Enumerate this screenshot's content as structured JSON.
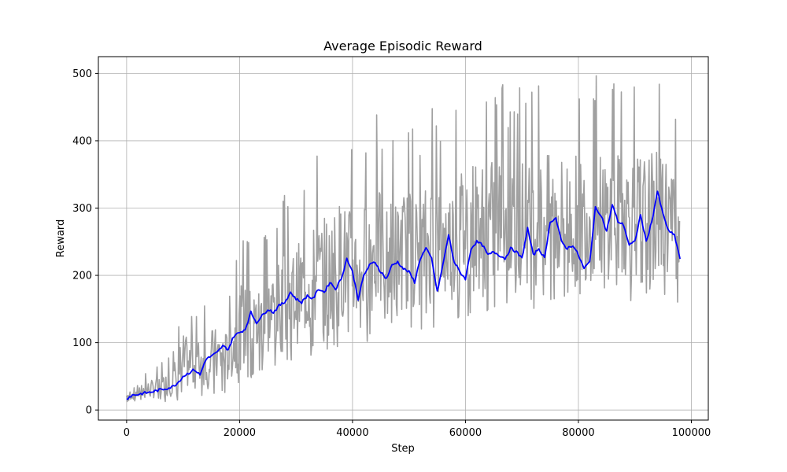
{
  "chart_data": {
    "type": "line",
    "title": "Average Episodic Reward",
    "xlabel": "Step",
    "ylabel": "Reward",
    "xlim": [
      -5000,
      103000
    ],
    "ylim": [
      -15,
      525
    ],
    "xticks": [
      0,
      20000,
      40000,
      60000,
      80000,
      100000
    ],
    "yticks": [
      0,
      100,
      200,
      300,
      400,
      500
    ],
    "grid": true,
    "colors": {
      "raw": "#a0a0a0",
      "smoothed": "#0000ff"
    },
    "series": [
      {
        "key": "raw",
        "x": [
          0,
          2000,
          4000,
          6000,
          8000,
          10000,
          12000,
          14000,
          16000,
          18000,
          20000,
          22000,
          24000,
          26000,
          28000,
          30000,
          32000,
          34000,
          36000,
          38000,
          40000,
          42000,
          44000,
          46000,
          48000,
          50000,
          52000,
          54000,
          56000,
          58000,
          60000,
          62000,
          64000,
          66000,
          68000,
          70000,
          72000,
          74000,
          76000,
          78000,
          80000,
          82000,
          84000,
          86000,
          88000,
          90000,
          92000,
          94000,
          96000,
          98000
        ],
        "y_low": [
          12,
          12,
          12,
          12,
          13,
          15,
          18,
          20,
          22,
          25,
          35,
          45,
          50,
          55,
          60,
          70,
          75,
          80,
          85,
          90,
          95,
          100,
          105,
          110,
          110,
          115,
          120,
          120,
          125,
          130,
          135,
          140,
          140,
          145,
          150,
          150,
          150,
          155,
          150,
          155,
          150,
          155,
          155,
          160,
          160,
          160,
          160,
          165,
          160,
          160
        ],
        "y_high": [
          35,
          50,
          60,
          70,
          85,
          165,
          140,
          175,
          175,
          165,
          265,
          255,
          265,
          300,
          320,
          335,
          370,
          385,
          405,
          435,
          400,
          415,
          455,
          415,
          440,
          440,
          420,
          475,
          430,
          455,
          500,
          500,
          490,
          500,
          450,
          500,
          470,
          500,
          500,
          500,
          500,
          500,
          500,
          500,
          500,
          500,
          500,
          500,
          500,
          400
        ]
      },
      {
        "key": "smoothed",
        "x": [
          0,
          1000,
          2000,
          3000,
          4000,
          5000,
          6000,
          7000,
          8000,
          9000,
          10000,
          11000,
          12000,
          13000,
          14000,
          15000,
          16000,
          17000,
          18000,
          19000,
          20000,
          21000,
          22000,
          23000,
          24000,
          25000,
          26000,
          27000,
          28000,
          29000,
          30000,
          31000,
          32000,
          33000,
          34000,
          35000,
          36000,
          37000,
          38000,
          39000,
          40000,
          41000,
          42000,
          43000,
          44000,
          45000,
          46000,
          47000,
          48000,
          49000,
          50000,
          51000,
          52000,
          53000,
          54000,
          55000,
          56000,
          57000,
          58000,
          59000,
          60000,
          61000,
          62000,
          63000,
          64000,
          65000,
          66000,
          67000,
          68000,
          69000,
          70000,
          71000,
          72000,
          73000,
          74000,
          75000,
          76000,
          77000,
          78000,
          79000,
          80000,
          81000,
          82000,
          83000,
          84000,
          85000,
          86000,
          87000,
          88000,
          89000,
          90000,
          91000,
          92000,
          93000,
          94000,
          95000,
          96000,
          97000,
          98000
        ],
        "y": [
          17,
          22,
          23,
          25,
          26,
          28,
          30,
          32,
          34,
          40,
          50,
          55,
          60,
          52,
          75,
          80,
          85,
          95,
          90,
          110,
          115,
          120,
          145,
          130,
          140,
          150,
          145,
          155,
          160,
          175,
          165,
          160,
          170,
          165,
          180,
          175,
          190,
          180,
          195,
          225,
          205,
          165,
          200,
          215,
          220,
          205,
          195,
          215,
          220,
          210,
          205,
          190,
          225,
          240,
          225,
          175,
          215,
          260,
          220,
          205,
          195,
          240,
          250,
          245,
          230,
          235,
          230,
          225,
          240,
          235,
          225,
          270,
          230,
          240,
          225,
          280,
          285,
          250,
          240,
          245,
          230,
          210,
          220,
          300,
          290,
          265,
          305,
          280,
          275,
          245,
          250,
          290,
          250,
          280,
          325,
          290,
          265,
          260,
          225
        ]
      }
    ]
  }
}
